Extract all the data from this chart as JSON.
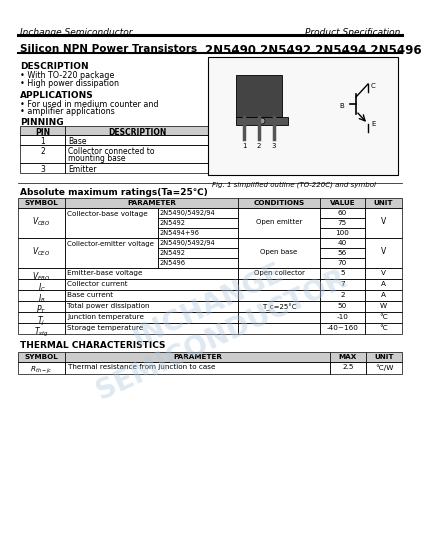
{
  "company": "Inchange Semiconductor",
  "product_spec": "Product Specification",
  "title_left": "Silicon NPN Power Transistors",
  "title_right": "2N5490 2N5492 2N5494 2N5496",
  "description_header": "DESCRIPTION",
  "desc_bullet": "•",
  "description_items": [
    "With TO-220 package",
    "High power dissipation"
  ],
  "applications_header": "APPLICATIONS",
  "applications_items": [
    "For used in medium counter and",
    "amplifier applications"
  ],
  "pinning_header": "PINNING",
  "pin_headers": [
    "PIN",
    "DESCRIPTION"
  ],
  "pin_rows": [
    [
      "1",
      "Base"
    ],
    [
      "2",
      "Collector connected to\nmounting base"
    ],
    [
      "3",
      "Emitter"
    ]
  ],
  "fig_caption": "Fig. 1 simplified outline (TO-220C) and symbol",
  "abs_header": "Absolute maximum ratings(Ta=25℃)",
  "abs_col_headers": [
    "SYMBOL",
    "PARAMETER",
    "CONDITIONS",
    "VALUE",
    "UNIT"
  ],
  "vcbo_subs": [
    "2N5490/5492/94",
    "2N5492",
    "2N5494+96"
  ],
  "vcbo_vals": [
    "60",
    "75",
    "100"
  ],
  "vceo_subs": [
    "2N5490/5492/94",
    "2N5492",
    "2N5496"
  ],
  "vceo_vals": [
    "40",
    "56",
    "70"
  ],
  "single_rows": [
    [
      "V_{EBO}",
      "Emitter-base voltage",
      "Open collector",
      "5",
      "V"
    ],
    [
      "I_C",
      "Collector current",
      "",
      "7",
      "A"
    ],
    [
      "I_B",
      "Base current",
      "",
      "2",
      "A"
    ],
    [
      "P_T",
      "Total power dissipation",
      "T_c=25°C",
      "50",
      "W"
    ],
    [
      "T_j",
      "Junction temperature",
      "",
      "-10",
      "°C"
    ],
    [
      "T_{stg}",
      "Storage temperature",
      "",
      "-40~160",
      "°C"
    ]
  ],
  "thermal_header": "THERMAL CHARACTERISTICS",
  "thermal_col_headers": [
    "SYMBOL",
    "PARAMETER",
    "MAX",
    "UNIT"
  ],
  "thermal_row": [
    "R_{th-jc}",
    "Thermal resistance from junction to case",
    "2.5",
    "°C/W"
  ],
  "bg_color": "#ffffff",
  "header_bg": "#cccccc",
  "watermark_text": "INCHANGE\nSEMICONDUCTOR",
  "watermark_color": "#b0c8e0"
}
